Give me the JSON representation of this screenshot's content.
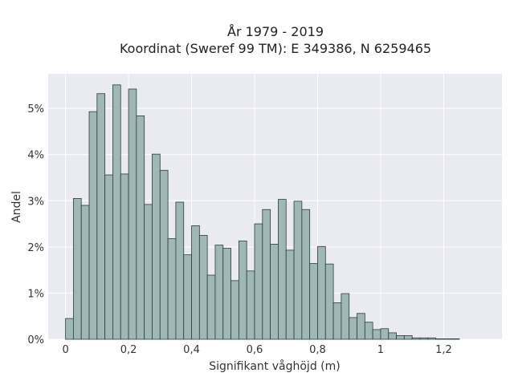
{
  "chart_data": {
    "type": "bar",
    "title_line1": "År 1979 - 2019",
    "title_line2": "Koordinat (Sweref 99 TM): E 349386, N 6259465",
    "xlabel": "Signifikant våghöjd (m)",
    "ylabel": "Andel",
    "xlim": [
      -0.055,
      1.385
    ],
    "ylim": [
      0,
      0.0575
    ],
    "grid": true,
    "bin_width": 0.025,
    "bin_start": 0.0,
    "x_ticks": [
      {
        "value": 0,
        "label": "0"
      },
      {
        "value": 0.2,
        "label": "0,2"
      },
      {
        "value": 0.4,
        "label": "0,4"
      },
      {
        "value": 0.6,
        "label": "0,6"
      },
      {
        "value": 0.8,
        "label": "0,8"
      },
      {
        "value": 1.0,
        "label": "1"
      },
      {
        "value": 1.2,
        "label": "1,2"
      }
    ],
    "y_ticks": [
      {
        "value": 0,
        "label": "0%"
      },
      {
        "value": 0.01,
        "label": "1%"
      },
      {
        "value": 0.02,
        "label": "2%"
      },
      {
        "value": 0.03,
        "label": "3%"
      },
      {
        "value": 0.04,
        "label": "4%"
      },
      {
        "value": 0.05,
        "label": "5%"
      }
    ],
    "values": [
      0.0045,
      0.0305,
      0.029,
      0.0493,
      0.0532,
      0.0356,
      0.0551,
      0.0358,
      0.0542,
      0.0484,
      0.0292,
      0.0401,
      0.0366,
      0.0218,
      0.0297,
      0.0183,
      0.0246,
      0.0225,
      0.0139,
      0.0204,
      0.0197,
      0.0127,
      0.0213,
      0.0148,
      0.025,
      0.0281,
      0.0206,
      0.0303,
      0.0193,
      0.0299,
      0.0281,
      0.0164,
      0.0201,
      0.0163,
      0.0079,
      0.0099,
      0.0047,
      0.0056,
      0.0037,
      0.0021,
      0.0023,
      0.0014,
      0.0008,
      0.0008,
      0.0003,
      0.0003,
      0.0003,
      0.0001,
      0.0001,
      0.0001
    ],
    "colors": {
      "bar_fill": "#9fb7b7",
      "bar_stroke": "#2e3b3b",
      "plot_bg": "#eaeaf2",
      "grid": "#ffffff"
    }
  }
}
